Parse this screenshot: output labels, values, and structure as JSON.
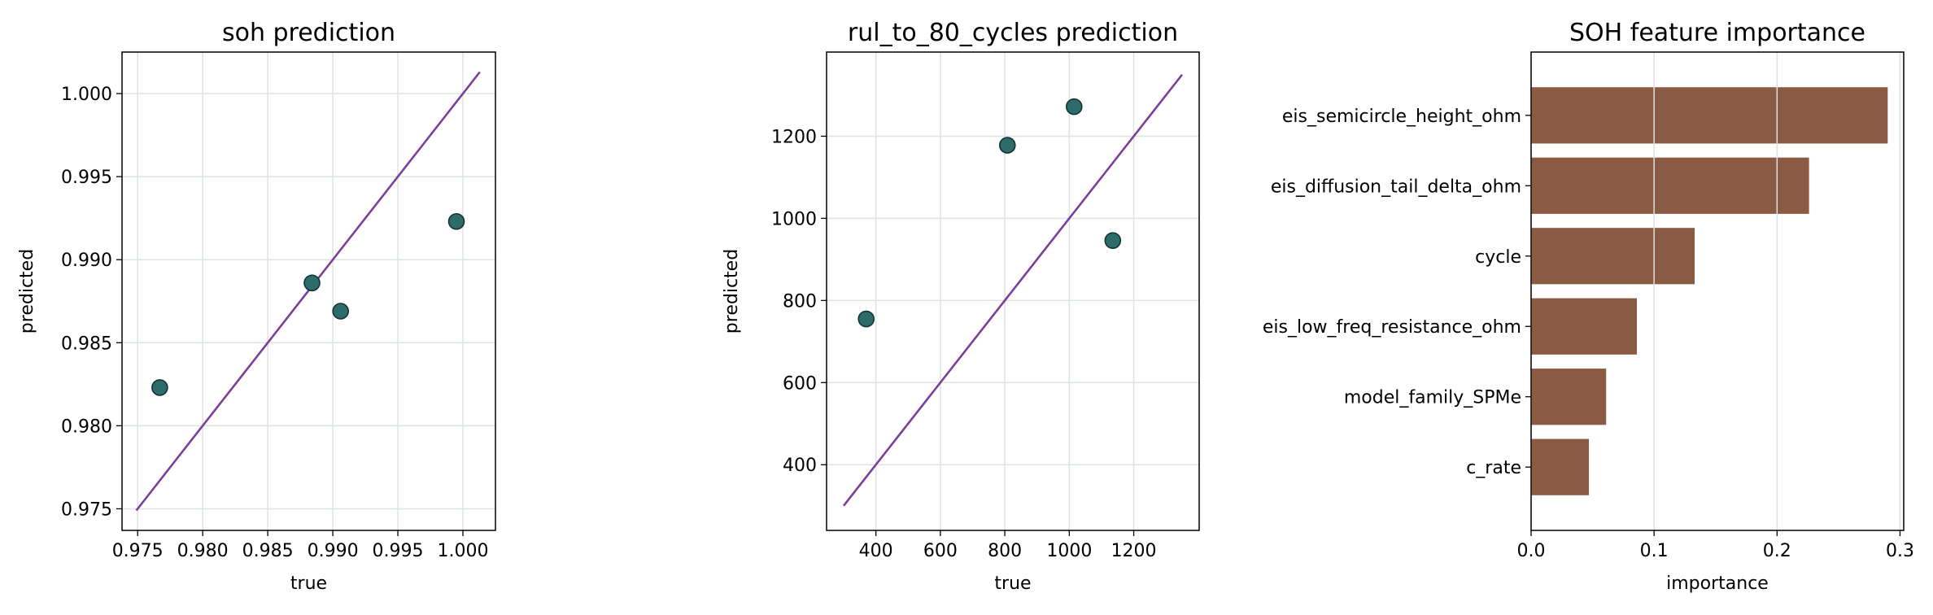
{
  "chart_data": [
    {
      "type": "scatter",
      "title": "soh prediction",
      "xlabel": "true",
      "ylabel": "predicted",
      "xlim": [
        0.9738,
        1.0025
      ],
      "ylim": [
        0.9737,
        1.0025
      ],
      "xticks": [
        0.975,
        0.98,
        0.985,
        0.99,
        0.995,
        1.0
      ],
      "xtick_labels": [
        "0.975",
        "0.980",
        "0.985",
        "0.990",
        "0.995",
        "1.000"
      ],
      "yticks": [
        0.975,
        0.98,
        0.985,
        0.99,
        0.995,
        1.0
      ],
      "ytick_labels": [
        "0.975",
        "0.980",
        "0.985",
        "0.990",
        "0.995",
        "1.000"
      ],
      "grid": true,
      "points": [
        {
          "x": 0.9767,
          "y": 0.9823
        },
        {
          "x": 0.9884,
          "y": 0.9886
        },
        {
          "x": 0.9906,
          "y": 0.9869
        },
        {
          "x": 0.9995,
          "y": 0.9923
        }
      ],
      "reference_line": {
        "x": [
          0.9749,
          1.0013
        ],
        "y": [
          0.9749,
          1.0013
        ]
      },
      "point_color": "#2e6b6b",
      "line_color": "#7b3f98"
    },
    {
      "type": "scatter",
      "title": "rul_to_80_cycles prediction",
      "xlabel": "true",
      "ylabel": "predicted",
      "xlim": [
        247,
        1403
      ],
      "ylim": [
        240,
        1405
      ],
      "xticks": [
        400,
        600,
        800,
        1000,
        1200
      ],
      "xtick_labels": [
        "400",
        "600",
        "800",
        "1000",
        "1200"
      ],
      "yticks": [
        400,
        600,
        800,
        1000,
        1200
      ],
      "ytick_labels": [
        "400",
        "600",
        "800",
        "1000",
        "1200"
      ],
      "grid": true,
      "points": [
        {
          "x": 370,
          "y": 755
        },
        {
          "x": 808,
          "y": 1178
        },
        {
          "x": 1015,
          "y": 1272
        },
        {
          "x": 1135,
          "y": 946
        }
      ],
      "reference_line": {
        "x": [
          300,
          1350
        ],
        "y": [
          300,
          1350
        ]
      },
      "point_color": "#2e6b6b",
      "line_color": "#7b3f98"
    },
    {
      "type": "bar",
      "orientation": "horizontal",
      "title": "SOH feature importance",
      "xlabel": "importance",
      "ylabel": "",
      "xlim": [
        0,
        0.303
      ],
      "xticks": [
        0.0,
        0.1,
        0.2,
        0.3
      ],
      "xtick_labels": [
        "0.0",
        "0.1",
        "0.2",
        "0.3"
      ],
      "grid": true,
      "categories": [
        "eis_semicircle_height_ohm",
        "eis_diffusion_tail_delta_ohm",
        "cycle",
        "eis_low_freq_resistance_ohm",
        "model_family_SPMe",
        "c_rate"
      ],
      "values": [
        0.29,
        0.226,
        0.133,
        0.086,
        0.061,
        0.047
      ],
      "bar_color": "#8b5a42"
    }
  ]
}
